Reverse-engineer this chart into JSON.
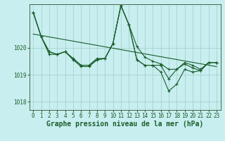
{
  "bg_color": "#c8eef0",
  "plot_bg_color": "#c8eef0",
  "grid_color": "#a0ccc8",
  "line_color": "#1a5e2a",
  "xlabel": "Graphe pression niveau de la mer (hPa)",
  "xlabel_fontsize": 7,
  "tick_fontsize": 5.5,
  "ylim": [
    1017.7,
    1021.6
  ],
  "xlim": [
    -0.5,
    23.5
  ],
  "yticks": [
    1018,
    1019,
    1020
  ],
  "xticks": [
    0,
    1,
    2,
    3,
    4,
    5,
    6,
    7,
    8,
    9,
    10,
    11,
    12,
    13,
    14,
    15,
    16,
    17,
    18,
    19,
    20,
    21,
    22,
    23
  ],
  "series1": [
    1021.3,
    1020.4,
    1019.85,
    1019.75,
    1019.85,
    1019.6,
    1019.35,
    1019.35,
    1019.6,
    1019.6,
    1020.15,
    1021.55,
    1020.85,
    1020.05,
    1019.65,
    1019.5,
    1019.4,
    1019.2,
    1019.2,
    1019.45,
    1019.35,
    1019.2,
    1019.45,
    1019.45
  ],
  "series2": [
    1021.3,
    1020.4,
    1019.75,
    1019.75,
    1019.85,
    1019.6,
    1019.35,
    1019.35,
    1019.55,
    1019.6,
    1020.15,
    1021.55,
    1020.85,
    1019.55,
    1019.35,
    1019.35,
    1019.35,
    1018.85,
    1019.2,
    1019.4,
    1019.25,
    1019.15,
    1019.45,
    1019.45
  ],
  "series3": [
    1021.3,
    1020.4,
    1019.85,
    1019.75,
    1019.85,
    1019.55,
    1019.3,
    1019.3,
    1019.55,
    1019.6,
    1020.15,
    1021.55,
    1020.85,
    1019.55,
    1019.35,
    1019.35,
    1019.1,
    1018.4,
    1018.65,
    1019.2,
    1019.1,
    1019.15,
    1019.45,
    1019.45
  ],
  "trend_x": [
    0,
    23
  ],
  "trend_y": [
    1020.5,
    1019.3
  ]
}
